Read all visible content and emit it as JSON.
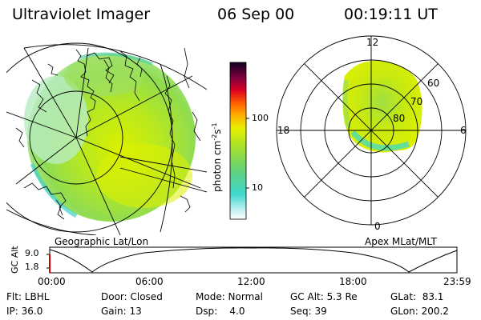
{
  "header": {
    "title": "Ultraviolet Imager",
    "date": "06 Sep 00",
    "time": "00:19:11 UT"
  },
  "left_panel": {
    "caption": "Geographic Lat/Lon"
  },
  "right_panel": {
    "caption": "Apex MLat/MLT",
    "mlt_labels": {
      "top": "12",
      "left": "18",
      "right": "6",
      "bottom": "0"
    },
    "lat_labels": [
      "60",
      "70",
      "80"
    ]
  },
  "colorbar": {
    "unit_label": "photon cm",
    "unit_sup1": "-2",
    "unit_mid": "s",
    "unit_sup2": "-1",
    "scale": "log",
    "tick_labels": [
      "100",
      "10"
    ]
  },
  "altitude_plot": {
    "ylabel": "GC Alt",
    "y_ticks": [
      "9.0",
      "1.8"
    ],
    "x_ticks": [
      "00:00",
      "06:00",
      "12:00",
      "18:00",
      "23:59"
    ]
  },
  "status": {
    "flt": "Flt: LBHL",
    "ip": "IP: 36.0",
    "door": "Door: Closed",
    "gain": "Gain: 13",
    "mode": "Mode: Normal",
    "dsp": "Dsp:    4.0",
    "gc_alt": "GC Alt: 5.3 Re",
    "seq": "Seq: 39",
    "glat": "GLat:  83.1",
    "glon": "GLon: 200.2"
  },
  "colors": {
    "background": "#ffffff",
    "emission_low": "#c8f0c0",
    "emission_mid": "#a8e040",
    "emission_high": "#e0f000",
    "emission_edge": "#40d0c0",
    "coastline": "#000000"
  }
}
